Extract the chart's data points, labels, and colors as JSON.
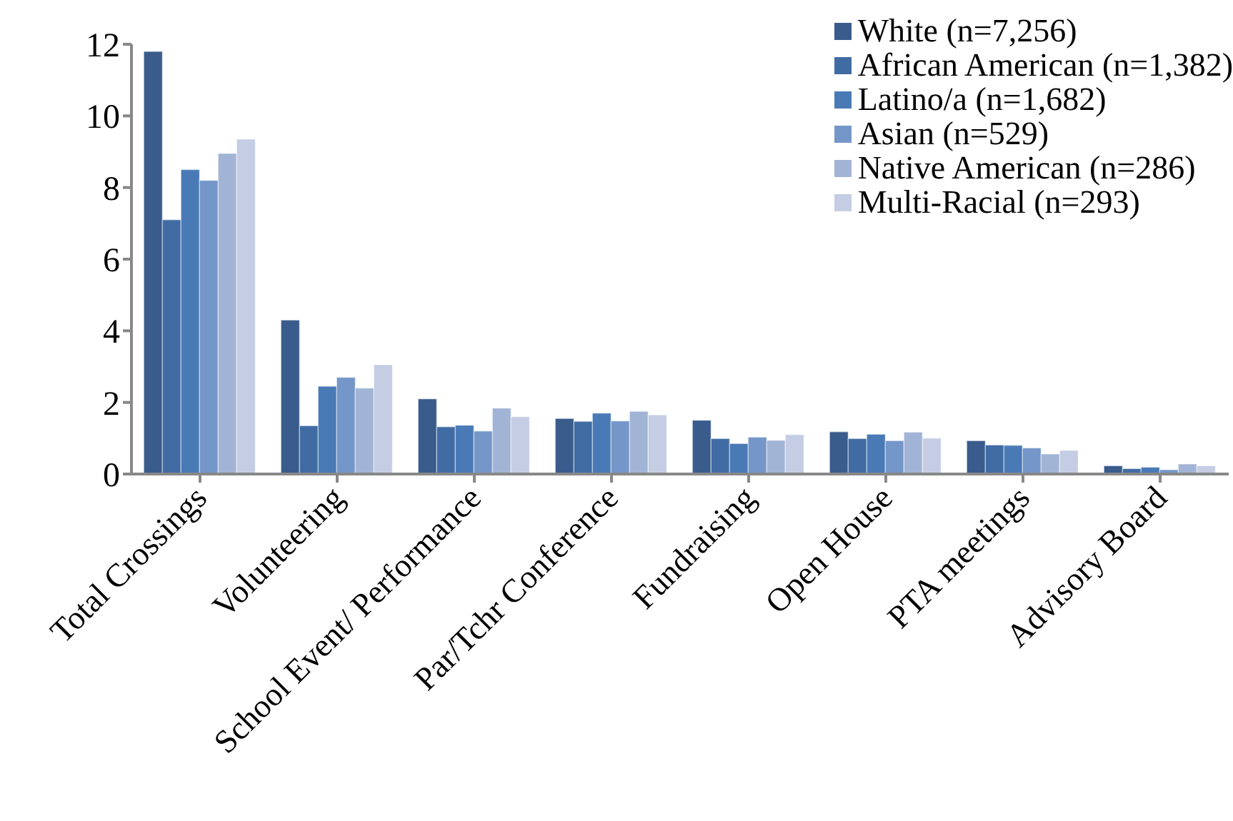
{
  "chart_data": {
    "type": "bar",
    "categories": [
      "Total Crossings",
      "Volunteering",
      "School Event/ Performance",
      "Par/Tchr Conference",
      "Fundraising",
      "Open House",
      "PTA meetings",
      "Advisory Board"
    ],
    "series": [
      {
        "name": "White (n=7,256)",
        "color": "#3a5c8c",
        "values": [
          11.8,
          4.3,
          2.1,
          1.55,
          1.5,
          1.18,
          0.93,
          0.23
        ]
      },
      {
        "name": "African American (n=1,382)",
        "color": "#416ca3",
        "values": [
          7.1,
          1.35,
          1.32,
          1.47,
          0.99,
          0.99,
          0.81,
          0.15
        ]
      },
      {
        "name": "Latino/a (n=1,682)",
        "color": "#4a7ab6",
        "values": [
          8.5,
          2.45,
          1.36,
          1.7,
          0.85,
          1.11,
          0.8,
          0.19
        ]
      },
      {
        "name": "Asian (n=529)",
        "color": "#7596c8",
        "values": [
          8.2,
          2.7,
          1.2,
          1.48,
          1.03,
          0.93,
          0.73,
          0.12
        ]
      },
      {
        "name": "Native American (n=286)",
        "color": "#a2b4d6",
        "values": [
          8.95,
          2.4,
          1.84,
          1.75,
          0.94,
          1.17,
          0.56,
          0.28
        ]
      },
      {
        "name": "Multi-Racial (n=293)",
        "color": "#c4cde3",
        "values": [
          9.35,
          3.05,
          1.6,
          1.65,
          1.1,
          1.0,
          0.66,
          0.23
        ]
      }
    ],
    "ylim": [
      0,
      12
    ],
    "yticks": [
      0,
      2,
      4,
      6,
      8,
      10,
      12
    ],
    "grid": false,
    "legend": "top right"
  }
}
